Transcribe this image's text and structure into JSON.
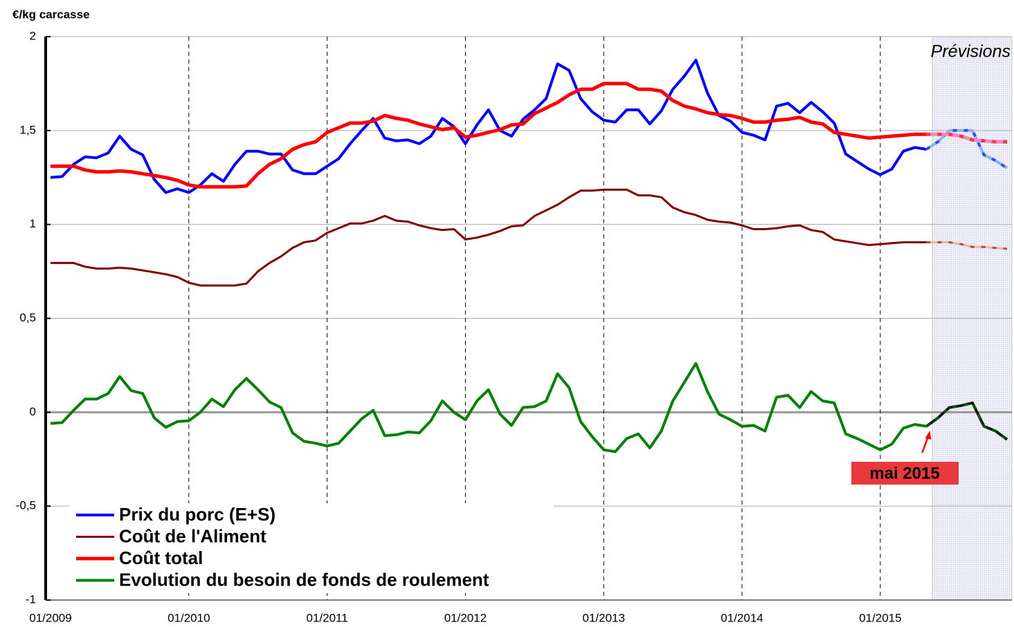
{
  "chart_data": {
    "type": "line",
    "y_label": "€/kg carcasse",
    "categories": [
      "01/2009",
      null,
      null,
      null,
      null,
      null,
      null,
      null,
      null,
      null,
      null,
      null,
      "01/2010",
      null,
      null,
      null,
      null,
      null,
      null,
      null,
      null,
      null,
      null,
      null,
      "01/2011",
      null,
      null,
      null,
      null,
      null,
      null,
      null,
      null,
      null,
      null,
      null,
      "01/2012",
      null,
      null,
      null,
      null,
      null,
      null,
      null,
      null,
      null,
      null,
      null,
      "01/2013",
      null,
      null,
      null,
      null,
      null,
      null,
      null,
      null,
      null,
      null,
      null,
      "01/2014",
      null,
      null,
      null,
      null,
      null,
      null,
      null,
      null,
      null,
      null,
      null,
      "01/2015",
      null,
      null,
      null,
      null,
      null,
      null,
      null,
      null,
      null,
      null,
      null
    ],
    "ylim": [
      -1,
      2
    ],
    "yticks": [
      -1,
      {
        "value": -0.5,
        "label": "-0,5"
      },
      0,
      {
        "value": 0.5,
        "label": "0,5"
      },
      1,
      {
        "value": 1.5,
        "label": "1,5"
      },
      2
    ],
    "grid": true,
    "legend": "lower left",
    "forecast": {
      "label": "Prévisions",
      "start": 76.5
    },
    "annotation": {
      "text": "mai 2015",
      "index": 76
    },
    "series": [
      {
        "name": "Prix du porc (E+S)",
        "color": "#0000ff",
        "forecast_color": "#80b8f0",
        "width": 4,
        "values": [
          1.25,
          1.255,
          1.32,
          1.36,
          1.355,
          1.38,
          1.47,
          1.4,
          1.37,
          1.24,
          1.17,
          1.19,
          1.17,
          1.21,
          1.27,
          1.23,
          1.32,
          1.39,
          1.39,
          1.375,
          1.375,
          1.29,
          1.27,
          1.27,
          1.31,
          1.35,
          1.43,
          1.5,
          1.565,
          1.46,
          1.445,
          1.45,
          1.43,
          1.47,
          1.565,
          1.52,
          1.43,
          1.53,
          1.61,
          1.5,
          1.47,
          1.56,
          1.61,
          1.67,
          1.855,
          1.82,
          1.67,
          1.6,
          1.555,
          1.545,
          1.61,
          1.61,
          1.535,
          1.605,
          1.72,
          1.79,
          1.875,
          1.7,
          1.58,
          1.55,
          1.49,
          1.475,
          1.45,
          1.63,
          1.645,
          1.595,
          1.65,
          1.6,
          1.54,
          1.375,
          1.335,
          1.295,
          1.265,
          1.295,
          1.39,
          1.41,
          1.4,
          1.44,
          1.5,
          1.5,
          1.5,
          1.37,
          1.34,
          1.3
        ]
      },
      {
        "name": "Coût de l'Aliment",
        "color": "#800000",
        "forecast_color": "#f0b890",
        "width": 3,
        "values": [
          0.795,
          0.795,
          0.795,
          0.775,
          0.765,
          0.765,
          0.77,
          0.765,
          0.755,
          0.745,
          0.735,
          0.72,
          0.69,
          0.675,
          0.675,
          0.675,
          0.675,
          0.685,
          0.75,
          0.795,
          0.83,
          0.875,
          0.905,
          0.915,
          0.955,
          0.98,
          1.005,
          1.005,
          1.02,
          1.045,
          1.02,
          1.015,
          0.995,
          0.98,
          0.97,
          0.975,
          0.92,
          0.93,
          0.945,
          0.965,
          0.99,
          0.995,
          1.045,
          1.075,
          1.105,
          1.145,
          1.18,
          1.18,
          1.185,
          1.185,
          1.185,
          1.155,
          1.155,
          1.145,
          1.09,
          1.065,
          1.05,
          1.025,
          1.015,
          1.01,
          0.995,
          0.975,
          0.975,
          0.98,
          0.99,
          0.995,
          0.97,
          0.96,
          0.92,
          0.91,
          0.9,
          0.89,
          0.895,
          0.9,
          0.905,
          0.905,
          0.905,
          0.905,
          0.905,
          0.895,
          0.88,
          0.88,
          0.875,
          0.87
        ]
      },
      {
        "name": "Coût total",
        "color": "#ff0000",
        "forecast_color": "#f088c0",
        "width": 5,
        "values": [
          1.31,
          1.31,
          1.31,
          1.29,
          1.28,
          1.28,
          1.285,
          1.28,
          1.27,
          1.26,
          1.25,
          1.235,
          1.21,
          1.2,
          1.2,
          1.2,
          1.2,
          1.205,
          1.27,
          1.32,
          1.35,
          1.4,
          1.425,
          1.44,
          1.49,
          1.515,
          1.54,
          1.54,
          1.55,
          1.58,
          1.565,
          1.555,
          1.535,
          1.52,
          1.505,
          1.515,
          1.465,
          1.475,
          1.49,
          1.505,
          1.53,
          1.535,
          1.59,
          1.62,
          1.65,
          1.69,
          1.72,
          1.72,
          1.75,
          1.75,
          1.75,
          1.72,
          1.72,
          1.71,
          1.66,
          1.63,
          1.615,
          1.595,
          1.585,
          1.58,
          1.565,
          1.545,
          1.545,
          1.555,
          1.56,
          1.57,
          1.545,
          1.535,
          1.49,
          1.48,
          1.47,
          1.46,
          1.465,
          1.47,
          1.475,
          1.48,
          1.48,
          1.48,
          1.48,
          1.47,
          1.45,
          1.445,
          1.44,
          1.44
        ]
      },
      {
        "name": "Evolution du besoin de fonds de roulement",
        "color": "#008000",
        "forecast_color": "#1a1a1a",
        "width": 4,
        "values": [
          -0.06,
          -0.055,
          0.01,
          0.07,
          0.07,
          0.1,
          0.19,
          0.115,
          0.1,
          -0.03,
          -0.08,
          -0.05,
          -0.045,
          0,
          0.07,
          0.03,
          0.12,
          0.18,
          0.12,
          0.055,
          0.025,
          -0.11,
          -0.155,
          -0.165,
          -0.18,
          -0.165,
          -0.1,
          -0.035,
          0.01,
          -0.125,
          -0.12,
          -0.105,
          -0.11,
          -0.045,
          0.06,
          0,
          -0.04,
          0.06,
          0.12,
          -0.01,
          -0.07,
          0.025,
          0.03,
          0.06,
          0.205,
          0.13,
          -0.05,
          -0.13,
          -0.2,
          -0.21,
          -0.14,
          -0.115,
          -0.19,
          -0.1,
          0.06,
          0.16,
          0.26,
          0.11,
          -0.01,
          -0.04,
          -0.075,
          -0.07,
          -0.1,
          0.08,
          0.09,
          0.025,
          0.11,
          0.06,
          0.05,
          -0.115,
          -0.14,
          -0.17,
          -0.2,
          -0.17,
          -0.085,
          -0.065,
          -0.075,
          -0.03,
          0.025,
          0.035,
          0.05,
          -0.075,
          -0.1,
          -0.145
        ]
      }
    ]
  }
}
